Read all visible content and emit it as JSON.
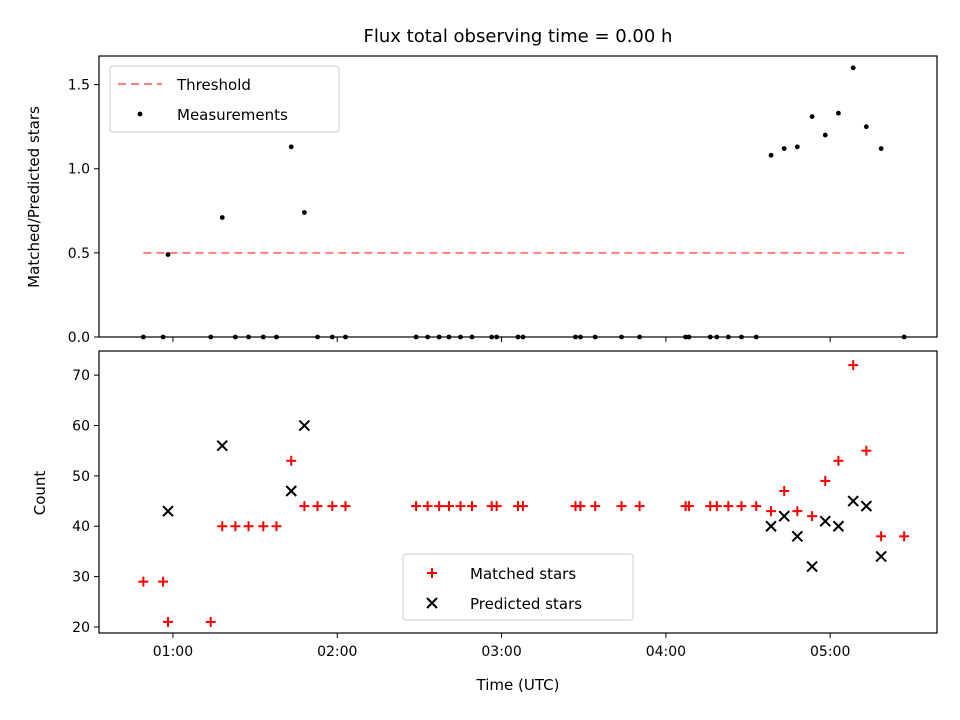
{
  "chart_data": [
    {
      "type": "scatter",
      "title": "Flux total observing time = 0.00 h",
      "xlabel": "",
      "ylabel": "Matched/Predicted stars",
      "xlim_hours": [
        0.55,
        5.65
      ],
      "ylim": [
        0,
        1.67
      ],
      "yticks": [
        0.0,
        0.5,
        1.0,
        1.5
      ],
      "ytick_labels": [
        "0.0",
        "0.5",
        "1.0",
        "1.5"
      ],
      "xticks_hours": [
        1,
        2,
        3,
        4,
        5
      ],
      "legend_position": "upper-left",
      "threshold": {
        "name": "Threshold",
        "value": 0.5,
        "x_range_hours": [
          0.82,
          5.45
        ],
        "color": "#ff7f7f"
      },
      "series": [
        {
          "name": "Measurements",
          "marker": "dot",
          "color": "#000000",
          "x_hours": [
            0.82,
            0.94,
            0.97,
            1.23,
            1.3,
            1.38,
            1.46,
            1.55,
            1.63,
            1.72,
            1.8,
            1.88,
            1.97,
            2.05,
            2.48,
            2.55,
            2.62,
            2.68,
            2.75,
            2.82,
            2.94,
            2.97,
            3.1,
            3.13,
            3.45,
            3.48,
            3.57,
            3.73,
            3.84,
            4.12,
            4.14,
            4.27,
            4.31,
            4.38,
            4.46,
            4.55,
            4.64,
            4.72,
            4.8,
            4.89,
            4.97,
            5.05,
            5.14,
            5.22,
            5.31,
            5.45
          ],
          "y": [
            0,
            0,
            0.49,
            0,
            0.71,
            0,
            0,
            0,
            0,
            1.13,
            0.74,
            0,
            0,
            0,
            0,
            0,
            0,
            0,
            0,
            0,
            0,
            0,
            0,
            0,
            0,
            0,
            0,
            0,
            0,
            0,
            0,
            0,
            0,
            0,
            0,
            0,
            1.08,
            1.12,
            1.13,
            1.31,
            1.2,
            1.33,
            1.6,
            1.25,
            1.12,
            0
          ]
        }
      ]
    },
    {
      "type": "scatter",
      "title": "",
      "xlabel": "Time (UTC)",
      "ylabel": "Count",
      "xlim_hours": [
        0.55,
        5.65
      ],
      "ylim": [
        18.8,
        74.8
      ],
      "yticks": [
        20,
        30,
        40,
        50,
        60,
        70
      ],
      "ytick_labels": [
        "20",
        "30",
        "40",
        "50",
        "60",
        "70"
      ],
      "xticks_hours": [
        1,
        2,
        3,
        4,
        5
      ],
      "xtick_labels": [
        "01:00",
        "02:00",
        "03:00",
        "04:00",
        "05:00"
      ],
      "legend_position": "lower-center",
      "series": [
        {
          "name": "Matched stars",
          "marker": "plus",
          "color": "#ff0000",
          "x_hours": [
            0.82,
            0.94,
            0.97,
            1.23,
            1.3,
            1.38,
            1.46,
            1.55,
            1.63,
            1.72,
            1.8,
            1.88,
            1.97,
            2.05,
            2.48,
            2.55,
            2.62,
            2.68,
            2.75,
            2.82,
            2.94,
            2.97,
            3.1,
            3.13,
            3.45,
            3.48,
            3.57,
            3.73,
            3.84,
            4.12,
            4.14,
            4.27,
            4.31,
            4.38,
            4.46,
            4.55,
            4.64,
            4.72,
            4.8,
            4.89,
            4.97,
            5.05,
            5.14,
            5.22,
            5.31,
            5.45
          ],
          "y": [
            29,
            29,
            21,
            21,
            40,
            40,
            40,
            40,
            40,
            53,
            44,
            44,
            44,
            44,
            44,
            44,
            44,
            44,
            44,
            44,
            44,
            44,
            44,
            44,
            44,
            44,
            44,
            44,
            44,
            44,
            44,
            44,
            44,
            44,
            44,
            44,
            43,
            47,
            43,
            42,
            49,
            53,
            72,
            55,
            38,
            38
          ]
        },
        {
          "name": "Predicted stars",
          "marker": "x",
          "color": "#000000",
          "x_hours": [
            0.97,
            1.3,
            1.72,
            1.8,
            4.64,
            4.72,
            4.8,
            4.89,
            4.97,
            5.05,
            5.14,
            5.22,
            5.31
          ],
          "y": [
            43,
            56,
            47,
            60,
            40,
            42,
            38,
            32,
            41,
            40,
            45,
            44,
            34
          ]
        }
      ]
    }
  ]
}
